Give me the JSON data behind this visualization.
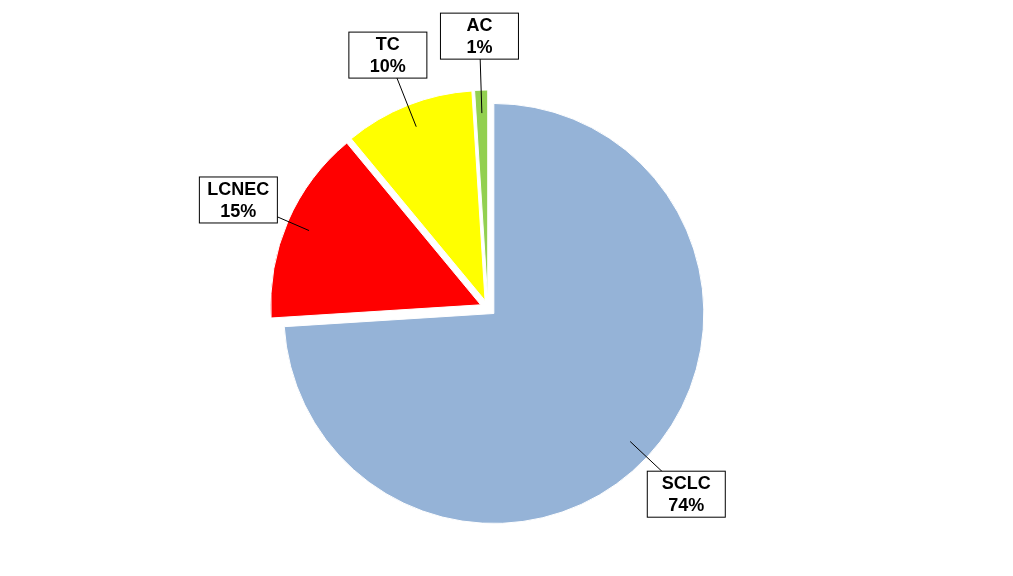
{
  "chart_data": {
    "type": "pie",
    "categories": [
      "SCLC",
      "LCNEC",
      "TC",
      "AC"
    ],
    "values": [
      74,
      15,
      10,
      1
    ],
    "colors": [
      "#95b3d7",
      "#ff0000",
      "#ffff00",
      "#92d050"
    ],
    "value_labels": [
      "74%",
      "15%",
      "10%",
      "1%"
    ]
  }
}
